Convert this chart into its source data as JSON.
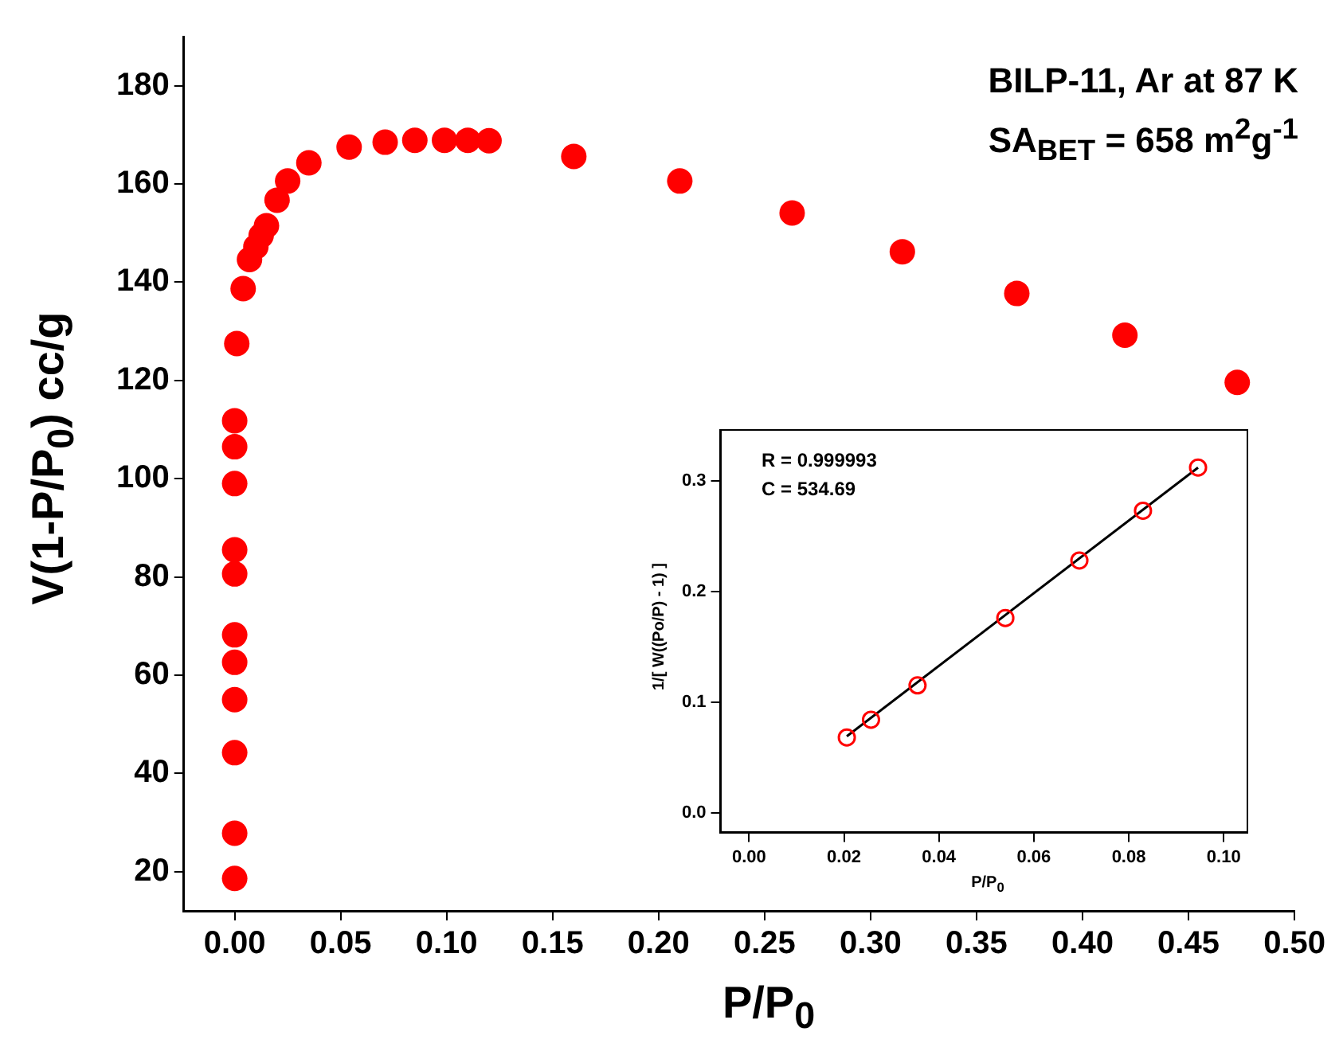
{
  "chart_data": [
    {
      "type": "scatter",
      "xlabel": "P/P$_{0}$",
      "ylabel": "V(1-P/P$_{0}$) cc/g",
      "annotations": [
        "BILP-11, Ar at 87 K",
        "SA$_{BET}$ = 658 m$^{2}$g$^{-1}$"
      ],
      "grid": false,
      "legend": false,
      "xlim": [
        -0.024,
        0.5
      ],
      "ylim": [
        12,
        190
      ],
      "xticks": [
        {
          "value": 0,
          "label": "0.00"
        },
        {
          "value": 0.05,
          "label": "0.05"
        },
        {
          "value": 0.1,
          "label": "0.10"
        },
        {
          "value": 0.15,
          "label": "0.15"
        },
        {
          "value": 0.2,
          "label": "0.20"
        },
        {
          "value": 0.25,
          "label": "0.25"
        },
        {
          "value": 0.3,
          "label": "0.30"
        },
        {
          "value": 0.35,
          "label": "0.35"
        },
        {
          "value": 0.4,
          "label": "0.40"
        },
        {
          "value": 0.45,
          "label": "0.45"
        },
        {
          "value": 0.5,
          "label": "0.50"
        }
      ],
      "yticks": [
        20,
        40,
        60,
        80,
        100,
        120,
        140,
        160,
        180
      ],
      "series": [
        {
          "marker": "circle",
          "color": "#ff0000",
          "x": [
            0,
            0,
            0,
            0,
            0,
            0,
            0,
            0,
            0,
            0,
            0,
            0.001,
            0.004,
            0.007,
            0.01,
            0.0125,
            0.015,
            0.02,
            0.025,
            0.035,
            0.054,
            0.071,
            0.085,
            0.099,
            0.11,
            0.12,
            0.16,
            0.21,
            0.263,
            0.315,
            0.369,
            0.42,
            0.473
          ],
          "values": [
            18.6,
            27.8,
            44.2,
            55.0,
            62.6,
            68.2,
            80.6,
            85.5,
            99.0,
            106.5,
            111.8,
            127.5,
            138.7,
            144.6,
            147.2,
            149.5,
            151.5,
            156.7,
            160.6,
            164.3,
            167.5,
            168.5,
            168.9,
            168.9,
            168.9,
            168.8,
            165.6,
            160.6,
            154.1,
            146.2,
            137.7,
            129.2,
            119.6
          ]
        }
      ]
    },
    {
      "type": "scatter",
      "xlabel": "P/P$_{0}$",
      "ylabel": "1/[ W((Po/P) - 1) ]",
      "annotations": [
        "R = 0.999993",
        "C = 534.69"
      ],
      "grid": false,
      "legend": false,
      "xlim": [
        -0.006,
        0.105
      ],
      "ylim": [
        -0.018,
        0.346
      ],
      "xticks": [
        {
          "value": 0,
          "label": "0.00"
        },
        {
          "value": 0.02,
          "label": "0.02"
        },
        {
          "value": 0.04,
          "label": "0.04"
        },
        {
          "value": 0.06,
          "label": "0.06"
        },
        {
          "value": 0.08,
          "label": "0.08"
        },
        {
          "value": 0.1,
          "label": "0.10"
        }
      ],
      "yticks": [
        {
          "value": 0,
          "label": "0.0"
        },
        {
          "value": 0.1,
          "label": "0.1"
        },
        {
          "value": 0.2,
          "label": "0.2"
        },
        {
          "value": 0.3,
          "label": "0.3"
        }
      ],
      "series": [
        {
          "marker": "circle",
          "color": "#ff0000",
          "x": [
            0.0206,
            0.0257,
            0.0355,
            0.054,
            0.0696,
            0.083,
            0.0946
          ],
          "values": [
            0.068,
            0.084,
            0.115,
            0.176,
            0.228,
            0.273,
            0.312
          ]
        },
        {
          "type": "line",
          "marker": "none",
          "color": "#000000",
          "x": [
            0.0206,
            0.0946
          ],
          "values": [
            0.069,
            0.312
          ]
        }
      ]
    }
  ]
}
